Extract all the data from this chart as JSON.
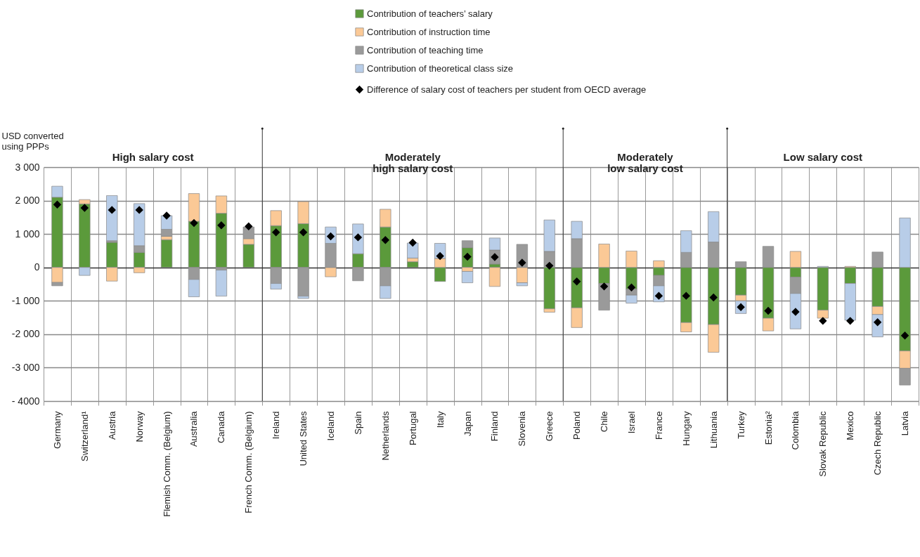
{
  "chart_data": {
    "type": "bar",
    "stacked": true,
    "legend": "top",
    "grid": true,
    "ylabel": "USD converted\nusing PPPs",
    "categories": [
      "Germany",
      "Switzerland¹",
      "Austria",
      "Norway",
      "Flemish Comm. (Belgium)",
      "Australia",
      "Canada",
      "French Comm. (Belgium)",
      "Ireland",
      "United States",
      "Iceland",
      "Spain",
      "Netherlands",
      "Portugal",
      "Italy",
      "Japan",
      "Finland",
      "Slovenia",
      "Greece",
      "Poland",
      "Chile",
      "Israel",
      "France",
      "Hungary",
      "Lithuania",
      "Turkey",
      "Estonia²",
      "Colombia",
      "Slovak Republic",
      "Mexico",
      "Czech Republic",
      "Latvia"
    ],
    "ylim": [
      -4000,
      3000
    ],
    "yticks": [
      {
        "value": 3000,
        "label": "3 000"
      },
      {
        "value": 2000,
        "label": "2 000"
      },
      {
        "value": 1000,
        "label": "1 000"
      },
      0,
      {
        "value": -1000,
        "label": "-1 000"
      },
      {
        "value": -2000,
        "label": "-2 000"
      },
      {
        "value": -3000,
        "label": "-3 000"
      },
      {
        "value": -4000,
        "label": "- 4000"
      }
    ],
    "series": [
      {
        "name": "Contribution of teachers’ salary",
        "color": "#5b9a3b",
        "values": [
          2100,
          1900,
          750,
          450,
          830,
          1380,
          1620,
          690,
          1250,
          1310,
          null,
          410,
          1210,
          170,
          -420,
          590,
          100,
          null,
          -1240,
          -1210,
          -480,
          -650,
          -240,
          -1650,
          -1710,
          -830,
          -1520,
          -290,
          -1280,
          -480,
          -1170,
          -2500
        ]
      },
      {
        "name": "Contribution of instruction time",
        "color": "#fbc996",
        "values": [
          -450,
          130,
          -410,
          -160,
          100,
          830,
          520,
          170,
          450,
          660,
          -280,
          null,
          530,
          110,
          270,
          -120,
          -570,
          -460,
          -100,
          -590,
          700,
          490,
          200,
          -280,
          -830,
          -170,
          -380,
          480,
          -240,
          30,
          -240,
          -520
        ]
      },
      {
        "name": "Contribution of teaching time",
        "color": "#9a9a9a",
        "values": [
          -100,
          null,
          50,
          200,
          210,
          -360,
          -80,
          350,
          -480,
          -860,
          720,
          -400,
          -550,
          null,
          null,
          210,
          420,
          690,
          480,
          860,
          -800,
          -180,
          -310,
          450,
          760,
          170,
          630,
          -490,
          null,
          null,
          460,
          -500
        ]
      },
      {
        "name": "Contribution of theoretical class size",
        "color": "#b8cde8",
        "values": [
          330,
          -240,
          1350,
          1260,
          410,
          -520,
          -780,
          null,
          -170,
          -70,
          490,
          890,
          -380,
          450,
          450,
          -340,
          360,
          -90,
          940,
          520,
          null,
          -240,
          -480,
          650,
          910,
          -380,
          null,
          -1060,
          30,
          -1100,
          -670,
          1480
        ]
      },
      {
        "name": "Difference of salary cost of teachers per student from OECD average",
        "type": "scatter",
        "marker": "diamond",
        "color": "#000000",
        "values": [
          1880,
          1780,
          1720,
          1720,
          1550,
          1330,
          1260,
          1230,
          1050,
          1050,
          930,
          900,
          820,
          740,
          340,
          320,
          310,
          140,
          50,
          -420,
          -570,
          -600,
          -850,
          -850,
          -900,
          -1190,
          -1300,
          -1330,
          -1600,
          -1600,
          -1640,
          -2040
        ]
      }
    ],
    "annotations": [
      "High salary cost",
      "Moderately\nhigh salary cost",
      "Moderately\nlow salary cost",
      "Low salary cost"
    ]
  }
}
